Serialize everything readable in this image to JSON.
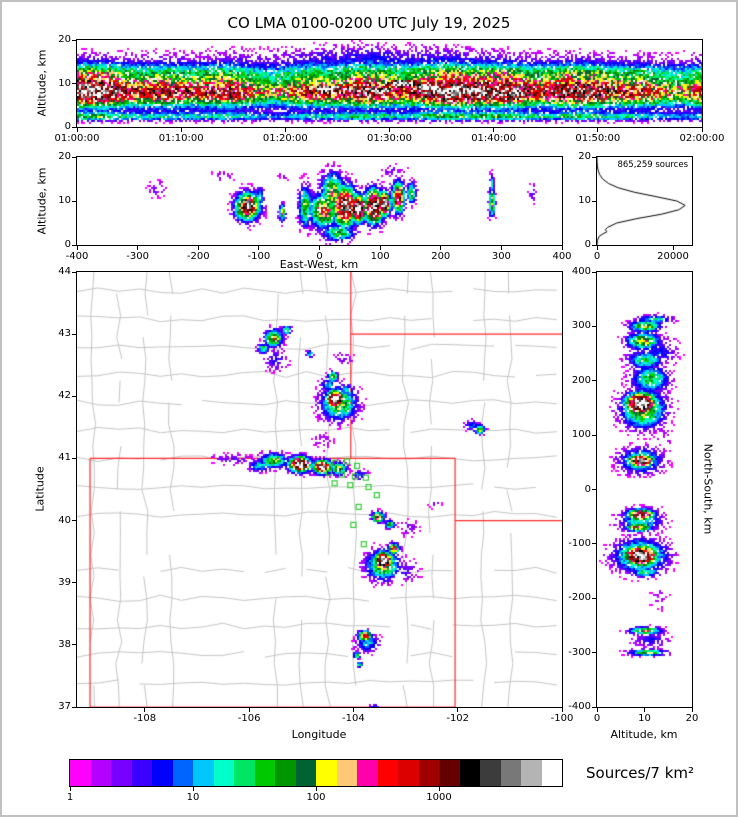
{
  "chart_data": {
    "type": "heatmap",
    "title": "CO LMA 0100-0200 UTC July 19, 2025",
    "time_height": {
      "ylabel": "Altitude, km",
      "x_tick_labels": [
        "01:00:00",
        "01:10:00",
        "01:20:00",
        "01:30:00",
        "01:40:00",
        "01:50:00",
        "02:00:00"
      ],
      "y": {
        "min": 0,
        "max": 20,
        "ticks": [
          0,
          10,
          20
        ]
      },
      "white_patches": [
        [
          0.4,
          9.0
        ],
        [
          0.48,
          8.6
        ],
        [
          0.56,
          9.3
        ],
        [
          0.63,
          8.8
        ],
        [
          0.52,
          10.2
        ]
      ]
    },
    "ew_height": {
      "xlabel": "East-West, km",
      "ylabel": "Altitude, km",
      "x": {
        "min": -400,
        "max": 400,
        "ticks": [
          -400,
          -300,
          -200,
          -100,
          0,
          100,
          200,
          300,
          400
        ]
      },
      "y": {
        "min": 0,
        "max": 20,
        "ticks": [
          0,
          10,
          20
        ]
      },
      "blobs": [
        [
          -120,
          9,
          26,
          4,
          0.8
        ],
        [
          -120,
          9.5,
          10,
          2.2,
          1.02
        ],
        [
          -128,
          8,
          18,
          3,
          0.55
        ],
        [
          -100,
          11,
          10,
          3,
          0.3
        ],
        [
          -63,
          7.5,
          7,
          2.5,
          0.5
        ],
        [
          -25,
          9,
          14,
          6,
          0.45
        ],
        [
          5,
          8,
          30,
          5,
          0.6
        ],
        [
          20,
          12,
          26,
          6,
          0.5
        ],
        [
          40,
          9,
          28,
          6,
          0.85
        ],
        [
          62,
          8.5,
          16,
          4,
          1.03
        ],
        [
          88,
          9,
          22,
          5,
          0.9
        ],
        [
          105,
          9.5,
          12,
          3.5,
          1.0
        ],
        [
          128,
          11,
          14,
          4.5,
          0.75
        ],
        [
          150,
          12,
          10,
          3,
          0.45
        ],
        [
          30,
          3,
          35,
          2.5,
          0.4
        ],
        [
          283,
          10,
          7,
          4.5,
          0.5
        ],
        [
          283,
          14,
          5,
          3,
          0.3
        ],
        [
          350,
          12,
          9,
          3,
          0.13
        ],
        [
          -270,
          13,
          22,
          2.5,
          0.11
        ],
        [
          -160,
          16,
          25,
          2,
          0.09
        ],
        [
          120,
          17,
          30,
          2,
          0.1
        ],
        [
          -60,
          16,
          15,
          2,
          0.08
        ]
      ]
    },
    "histogram": {
      "annotation": "865,259 sources",
      "x": {
        "min": 0,
        "max": 25000,
        "ticks": [
          0,
          20000
        ]
      },
      "y": {
        "min": 0,
        "max": 20,
        "ticks": [
          0,
          10,
          20
        ]
      },
      "curve": [
        [
          0,
          0
        ],
        [
          1,
          100
        ],
        [
          2,
          600
        ],
        [
          2.5,
          1500
        ],
        [
          3,
          2600
        ],
        [
          3.5,
          2200
        ],
        [
          4,
          2800
        ],
        [
          5,
          5200
        ],
        [
          6,
          10500
        ],
        [
          7,
          17000
        ],
        [
          8,
          21500
        ],
        [
          9,
          23200
        ],
        [
          10,
          21000
        ],
        [
          11,
          15500
        ],
        [
          12,
          9800
        ],
        [
          13,
          5600
        ],
        [
          14,
          3000
        ],
        [
          15,
          1500
        ],
        [
          16,
          700
        ],
        [
          17,
          280
        ],
        [
          18,
          90
        ],
        [
          19,
          20
        ],
        [
          20,
          0
        ]
      ]
    },
    "map": {
      "xlabel": "Longitude",
      "ylabel": "Latitude",
      "x": {
        "min": -109.3,
        "max": -100,
        "ticks": [
          -108,
          -106,
          -104,
          -102,
          -100
        ]
      },
      "y": {
        "min": 37,
        "max": 44,
        "ticks": [
          37,
          38,
          39,
          40,
          41,
          42,
          43,
          44
        ]
      },
      "colors": {
        "county": "#c4c4c4",
        "state": "#ff2a2a",
        "station": "#33cc33"
      },
      "state_lines": [
        [
          [
            -109.05,
            41
          ],
          [
            -109.05,
            37
          ],
          [
            -102.05,
            37
          ],
          [
            -102.05,
            41
          ],
          [
            -109.05,
            41
          ]
        ],
        [
          [
            -104.05,
            44
          ],
          [
            -104.05,
            41
          ]
        ],
        [
          [
            -104.05,
            43
          ],
          [
            -100,
            43
          ]
        ],
        [
          [
            -102.05,
            40
          ],
          [
            -100,
            40
          ]
        ]
      ],
      "stations": [
        [
          -104.35,
          40.93
        ],
        [
          -104.12,
          40.95
        ],
        [
          -103.93,
          40.88
        ],
        [
          -104.47,
          40.77
        ],
        [
          -104.22,
          40.74
        ],
        [
          -103.97,
          40.71
        ],
        [
          -103.76,
          40.69
        ],
        [
          -104.36,
          40.6
        ],
        [
          -104.06,
          40.57
        ],
        [
          -103.71,
          40.54
        ],
        [
          -103.55,
          40.41
        ],
        [
          -103.9,
          40.22
        ],
        [
          -104.0,
          39.93
        ],
        [
          -103.8,
          39.62
        ]
      ],
      "blobs": [
        [
          -105.55,
          42.95,
          0.22,
          0.18,
          0.55
        ],
        [
          -105.75,
          42.78,
          0.14,
          0.1,
          0.4
        ],
        [
          -105.3,
          43.08,
          0.12,
          0.1,
          0.38
        ],
        [
          -105.5,
          42.6,
          0.3,
          0.25,
          0.15
        ],
        [
          -104.85,
          42.7,
          0.1,
          0.08,
          0.3
        ],
        [
          -104.42,
          42.33,
          0.13,
          0.11,
          0.5
        ],
        [
          -104.5,
          42.2,
          0.2,
          0.15,
          0.25
        ],
        [
          -104.37,
          41.97,
          0.22,
          0.18,
          1.04
        ],
        [
          -104.3,
          41.9,
          0.45,
          0.35,
          0.45
        ],
        [
          -104.15,
          42.1,
          0.2,
          0.15,
          0.3
        ],
        [
          -101.6,
          41.48,
          0.14,
          0.1,
          0.45
        ],
        [
          -101.75,
          41.55,
          0.2,
          0.12,
          0.2
        ],
        [
          -105.55,
          40.98,
          0.35,
          0.15,
          0.45
        ],
        [
          -105.05,
          40.92,
          0.28,
          0.16,
          0.95
        ],
        [
          -104.62,
          40.88,
          0.24,
          0.14,
          0.9
        ],
        [
          -104.3,
          40.85,
          0.2,
          0.13,
          0.5
        ],
        [
          -106.3,
          41.0,
          0.55,
          0.12,
          0.12
        ],
        [
          -105.8,
          40.9,
          0.3,
          0.12,
          0.3
        ],
        [
          -103.9,
          40.75,
          0.2,
          0.12,
          0.2
        ],
        [
          -103.55,
          40.07,
          0.16,
          0.11,
          0.62
        ],
        [
          -103.32,
          39.95,
          0.13,
          0.09,
          0.45
        ],
        [
          -102.95,
          39.9,
          0.3,
          0.18,
          0.1
        ],
        [
          -103.45,
          39.37,
          0.22,
          0.18,
          1.04
        ],
        [
          -103.45,
          39.3,
          0.4,
          0.3,
          0.5
        ],
        [
          -103.25,
          39.56,
          0.14,
          0.11,
          0.72
        ],
        [
          -103.0,
          39.2,
          0.35,
          0.25,
          0.12
        ],
        [
          -103.8,
          38.16,
          0.17,
          0.11,
          0.68
        ],
        [
          -103.75,
          38.05,
          0.3,
          0.2,
          0.25
        ],
        [
          -103.95,
          37.85,
          0.09,
          0.07,
          0.45
        ],
        [
          -103.9,
          37.7,
          0.08,
          0.06,
          0.35
        ],
        [
          -103.62,
          37.02,
          0.14,
          0.05,
          0.22
        ],
        [
          -104.2,
          42.62,
          0.25,
          0.18,
          0.1
        ],
        [
          -106.55,
          41.02,
          0.3,
          0.08,
          0.1
        ],
        [
          -102.45,
          40.28,
          0.15,
          0.1,
          0.12
        ],
        [
          -104.6,
          41.3,
          0.3,
          0.2,
          0.08
        ]
      ]
    },
    "ns_height": {
      "xlabel": "Altitude, km",
      "ylabel": "North-South, km",
      "x": {
        "min": 0,
        "max": 20,
        "ticks": [
          0,
          10,
          20
        ]
      },
      "y": {
        "min": -400,
        "max": 400,
        "ticks": [
          400,
          300,
          200,
          100,
          0,
          -100,
          -200,
          -300,
          -400
        ]
      },
      "blobs": [
        [
          9,
          160,
          4.2,
          26,
          1.04
        ],
        [
          9.5,
          150,
          6,
          45,
          0.5
        ],
        [
          11,
          205,
          5,
          30,
          0.4
        ],
        [
          10,
          240,
          5,
          22,
          0.35
        ],
        [
          9.5,
          275,
          4.5,
          20,
          0.5
        ],
        [
          10,
          302,
          4.5,
          14,
          0.45
        ],
        [
          12,
          315,
          5,
          10,
          0.3
        ],
        [
          13,
          255,
          5,
          35,
          0.18
        ],
        [
          9,
          55,
          3.8,
          16,
          0.85
        ],
        [
          9,
          55,
          6,
          30,
          0.35
        ],
        [
          9,
          -45,
          3.8,
          14,
          0.8
        ],
        [
          8.5,
          -68,
          3.6,
          10,
          0.6
        ],
        [
          9,
          -55,
          6,
          28,
          0.3
        ],
        [
          9,
          -120,
          4.5,
          24,
          1.02
        ],
        [
          9,
          -120,
          7,
          38,
          0.5
        ],
        [
          10,
          -150,
          4,
          12,
          0.35
        ],
        [
          10,
          -258,
          4.5,
          9,
          0.5
        ],
        [
          10.5,
          -298,
          5,
          8,
          0.45
        ],
        [
          11,
          -275,
          5,
          20,
          0.15
        ],
        [
          14,
          110,
          3,
          60,
          0.06
        ],
        [
          13,
          -200,
          3.5,
          30,
          0.06
        ]
      ]
    },
    "colorbar": {
      "label": "Sources/7 km²",
      "tick_labels": [
        "1",
        "10",
        "100",
        "1000"
      ],
      "colors": [
        "#ff00ff",
        "#b400ff",
        "#7800ff",
        "#3c00ff",
        "#0000ff",
        "#0064ff",
        "#00c8ff",
        "#00ffc8",
        "#00e664",
        "#00c800",
        "#009600",
        "#006432",
        "#ffff00",
        "#ffc878",
        "#ff00aa",
        "#ff0000",
        "#dc0000",
        "#a00000",
        "#640000",
        "#000000",
        "#3c3c3c",
        "#787878",
        "#b4b4b4",
        "#ffffff"
      ]
    }
  }
}
